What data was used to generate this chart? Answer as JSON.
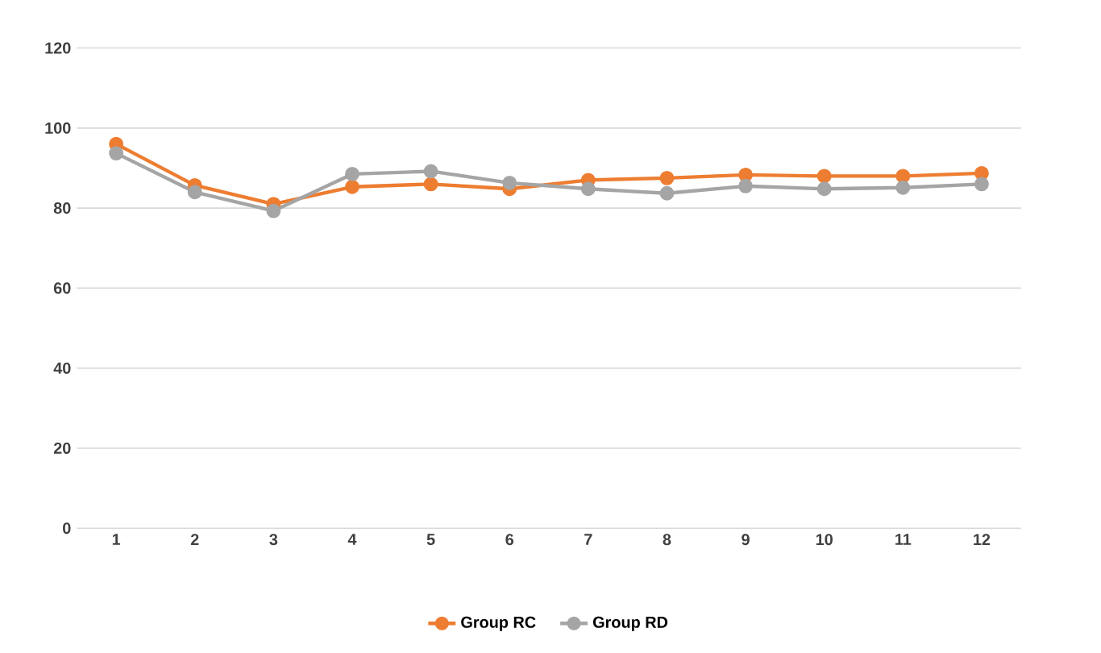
{
  "chart_data": {
    "type": "line",
    "categories": [
      "1",
      "2",
      "3",
      "4",
      "5",
      "6",
      "7",
      "8",
      "9",
      "10",
      "11",
      "12"
    ],
    "series": [
      {
        "name": "Group RC",
        "color": "#ed7d31",
        "values": [
          96,
          85.7,
          81,
          85.3,
          86,
          84.8,
          87,
          87.5,
          88.3,
          88,
          88,
          88.7
        ]
      },
      {
        "name": "Group RD",
        "color": "#a5a5a5",
        "values": [
          93.7,
          84,
          79.3,
          88.5,
          89.2,
          86.3,
          84.8,
          83.7,
          85.5,
          84.8,
          85.1,
          86
        ]
      }
    ],
    "ylim": [
      0,
      120
    ],
    "yticks": [
      0,
      20,
      40,
      60,
      80,
      100,
      120
    ],
    "grid": "y",
    "legend": "bottom",
    "marker": "circle",
    "line_style": "solid"
  }
}
